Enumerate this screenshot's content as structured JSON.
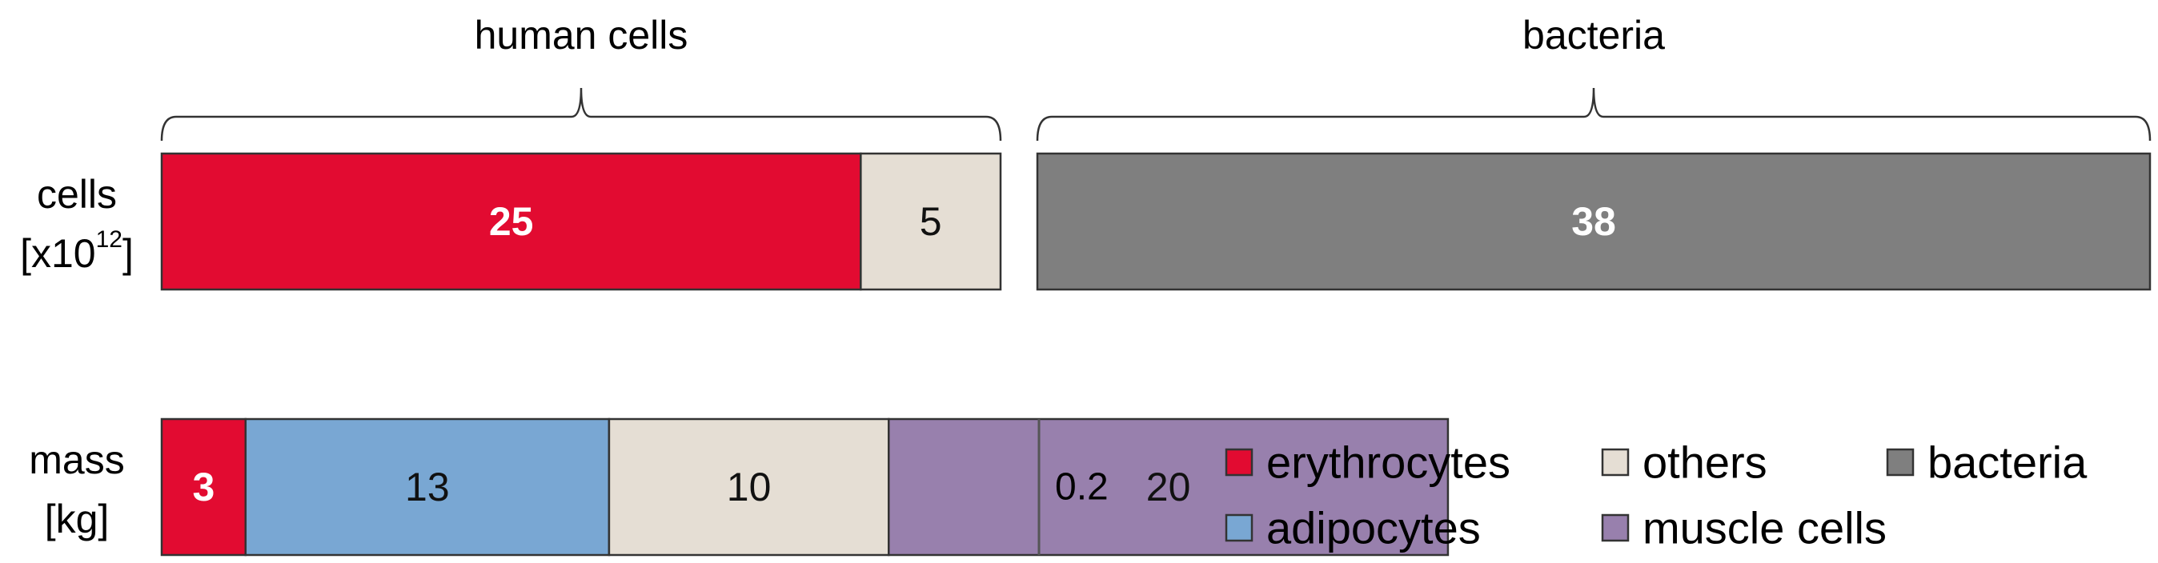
{
  "chart_data": {
    "type": "bar",
    "orientation": "horizontal-stacked",
    "groups": [
      {
        "key": "human",
        "label": "human cells"
      },
      {
        "key": "bacteria",
        "label": "bacteria"
      }
    ],
    "rows": [
      {
        "key": "cells",
        "label_line1": "cells",
        "label_line2_prefix": "[x10",
        "label_line2_sup": "12",
        "label_line2_suffix": "]",
        "human_segments": [
          {
            "series": "erythrocytes",
            "value": 25,
            "label": "25"
          },
          {
            "series": "others",
            "value": 5,
            "label": "5"
          }
        ],
        "bacteria_segments": [
          {
            "series": "bacteria",
            "value": 38,
            "label": "38"
          }
        ],
        "bacteria_note": ""
      },
      {
        "key": "mass",
        "label_line1": "mass",
        "label_line2_prefix": "[kg]",
        "label_line2_sup": "",
        "label_line2_suffix": "",
        "human_segments": [
          {
            "series": "erythrocytes",
            "value": 3,
            "label": "3"
          },
          {
            "series": "adipocytes",
            "value": 13,
            "label": "13"
          },
          {
            "series": "others",
            "value": 10,
            "label": "10"
          },
          {
            "series": "muscle cells",
            "value": 20,
            "label": "20"
          }
        ],
        "bacteria_segments": [
          {
            "series": "bacteria",
            "value": 0.2,
            "label": "0.2"
          }
        ],
        "bacteria_note": "0.2"
      }
    ],
    "series": [
      {
        "name": "erythrocytes",
        "color": "#e20b31",
        "label_color": "#ffffff",
        "bold": true
      },
      {
        "name": "others",
        "color": "#e5ded4",
        "label_color": "#111111",
        "bold": false
      },
      {
        "name": "bacteria",
        "color": "#7f7f7f",
        "label_color": "#ffffff",
        "bold": true
      },
      {
        "name": "adipocytes",
        "color": "#79a7d3",
        "label_color": "#111111",
        "bold": false
      },
      {
        "name": "muscle cells",
        "color": "#9880ad",
        "label_color": "#111111",
        "bold": false
      }
    ],
    "legend_placement": "bottom-right",
    "legend_order": [
      "erythrocytes",
      "others",
      "bacteria",
      "adipocytes",
      "muscle cells"
    ]
  }
}
